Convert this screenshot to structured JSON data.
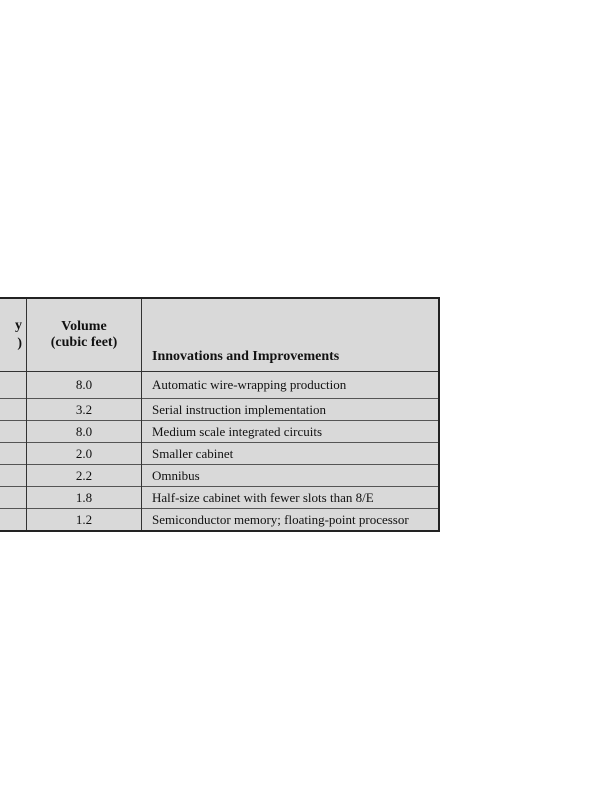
{
  "table": {
    "headers": {
      "col1_partial": [
        "y",
        ")"
      ],
      "volume": [
        "Volume",
        "(cubic feet)"
      ],
      "innovations": "Innovations and Improvements"
    },
    "rows": [
      {
        "volume": "8.0",
        "innovation": "Automatic wire-wrapping production"
      },
      {
        "volume": "3.2",
        "innovation": "Serial instruction implementation"
      },
      {
        "volume": "8.0",
        "innovation": "Medium scale integrated circuits"
      },
      {
        "volume": "2.0",
        "innovation": "Smaller cabinet"
      },
      {
        "volume": "2.2",
        "innovation": "Omnibus"
      },
      {
        "volume": "1.8",
        "innovation": "Half-size cabinet with fewer slots than 8/E"
      },
      {
        "volume": "1.2",
        "innovation": "Semiconductor memory; floating-point processor"
      }
    ]
  }
}
